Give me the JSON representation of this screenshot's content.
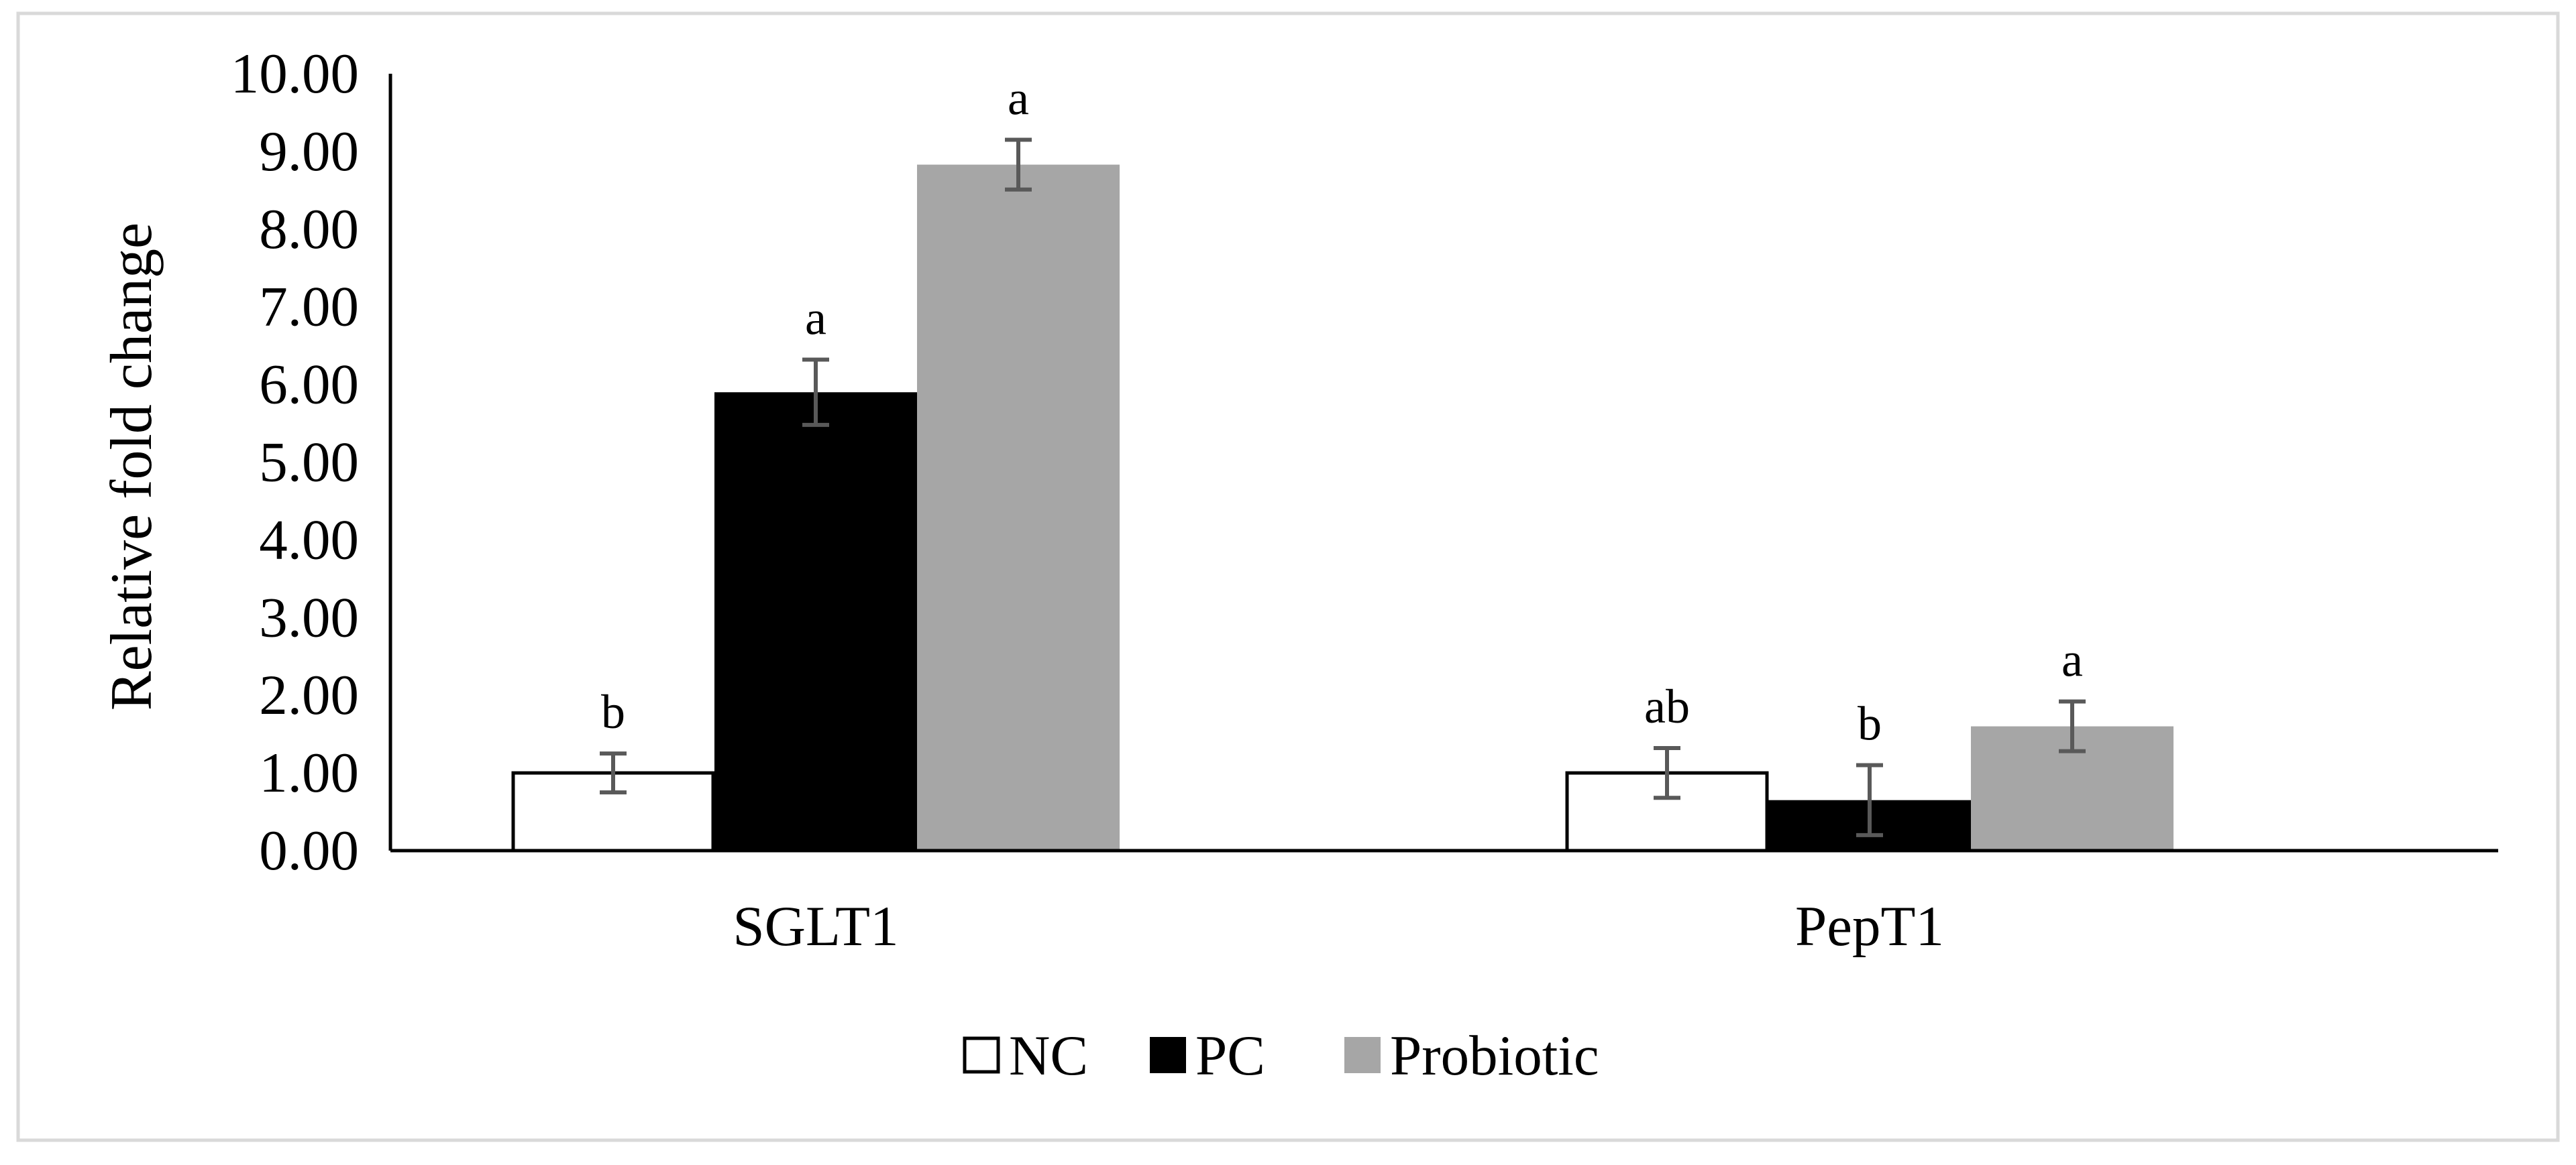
{
  "chart_data": {
    "type": "bar",
    "title": "",
    "xlabel": "",
    "ylabel": "Relative fold change",
    "ylim": [
      0,
      10
    ],
    "ytick_step": 1,
    "yticks": [
      "0.00",
      "1.00",
      "2.00",
      "3.00",
      "4.00",
      "5.00",
      "6.00",
      "7.00",
      "8.00",
      "9.00",
      "10.00"
    ],
    "grid": false,
    "legend_position": "bottom-center",
    "categories": [
      "SGLT1",
      "PepT1"
    ],
    "series": [
      {
        "name": "NC",
        "fill": "#ffffff",
        "stroke": "#000000",
        "values": [
          1.0,
          1.0
        ],
        "errors": [
          0.25,
          0.32
        ],
        "labels": [
          "b",
          "ab"
        ]
      },
      {
        "name": "PC",
        "fill": "#000000",
        "stroke": "#000000",
        "values": [
          5.9,
          0.65
        ],
        "errors": [
          0.42,
          0.45
        ],
        "labels": [
          "a",
          "b"
        ]
      },
      {
        "name": "Probiotic",
        "fill": "#a6a6a6",
        "stroke": "#a6a6a6",
        "values": [
          8.83,
          1.6
        ],
        "errors": [
          0.32,
          0.32
        ],
        "labels": [
          "a",
          "a"
        ]
      }
    ]
  }
}
